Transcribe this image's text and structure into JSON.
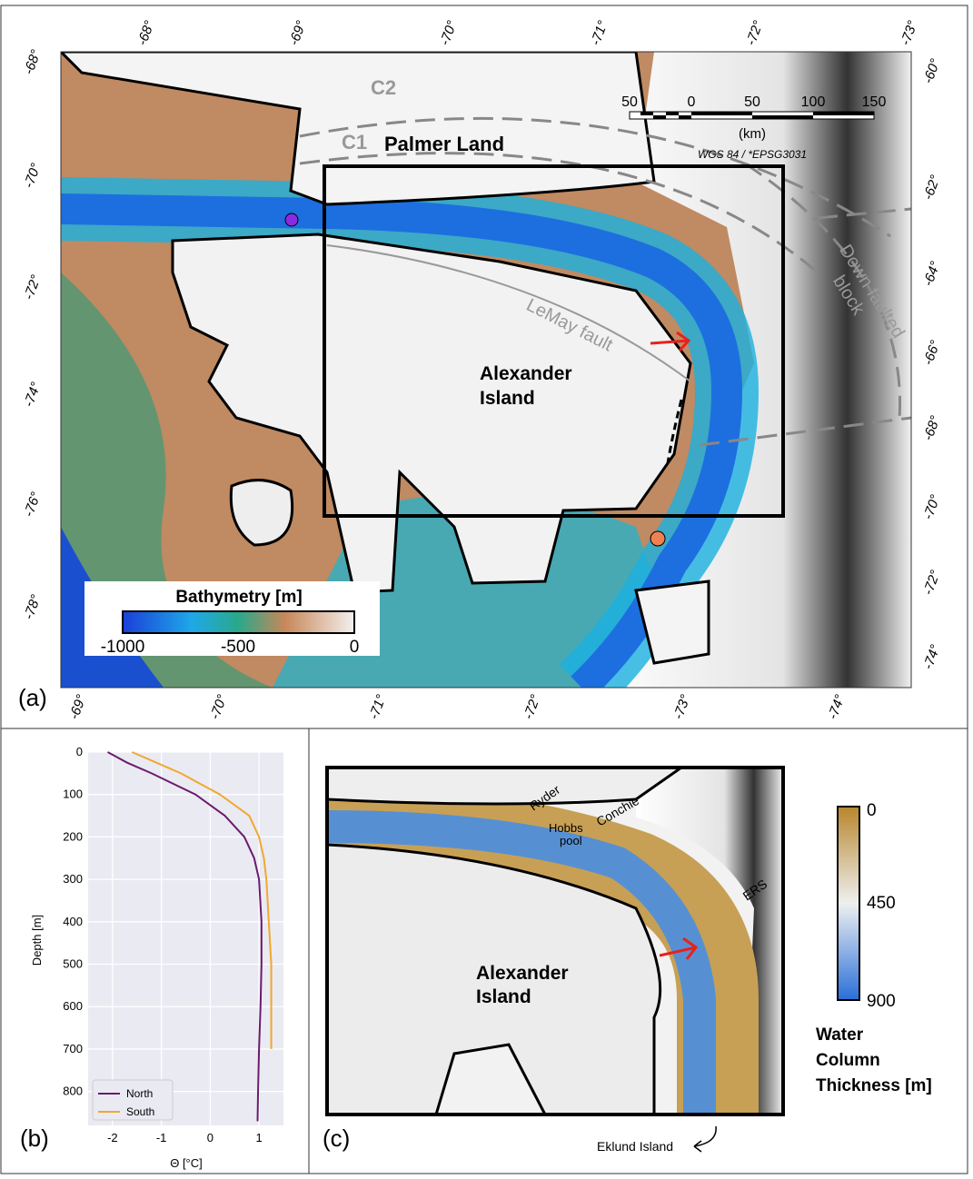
{
  "panel_a": {
    "label": "(a)",
    "lon_top": [
      "-68°",
      "-69°",
      "-70°",
      "-71°",
      "-72°",
      "-73°"
    ],
    "lon_bottom": [
      "-69°",
      "-70°",
      "-71°",
      "-72°",
      "-73°",
      "-74°"
    ],
    "lat_left": [
      "-68°",
      "-70°",
      "-72°",
      "-74°",
      "-76°",
      "-78°"
    ],
    "lat_right": [
      "-60°",
      "-62°",
      "-64°",
      "-66°",
      "-68°",
      "-70°",
      "-72°",
      "-74°"
    ],
    "features": {
      "c2": "C2",
      "c1": "C1",
      "palmer": "Palmer  Land",
      "lemay": "LeMay fault",
      "down_faulted": [
        "Down faulted",
        "block"
      ],
      "alexander": [
        "Alexander",
        "Island"
      ]
    },
    "scale": {
      "ticks": [
        "50",
        "0",
        "50",
        "100",
        "150"
      ],
      "unit": "(km)",
      "projection": "WGS 84 / *EPSG3031"
    },
    "colorbar": {
      "title": "Bathymetry [m]",
      "ticks": [
        "-1000",
        "-500",
        "0"
      ]
    }
  },
  "chart_data": {
    "type": "line",
    "panel_label": "(b)",
    "y_label": "Depth [m]",
    "x_label": "Θ [°C]",
    "depth": [
      0,
      25,
      50,
      100,
      150,
      200,
      250,
      300,
      400,
      500,
      600,
      700,
      800,
      870
    ],
    "series": [
      {
        "name": "North",
        "color": "#6a1b6e",
        "values": [
          -2.1,
          -1.7,
          -1.2,
          -0.3,
          0.3,
          0.7,
          0.9,
          1.0,
          1.05,
          1.05,
          1.03,
          1.0,
          0.98,
          0.97
        ]
      },
      {
        "name": "South",
        "color": "#f0a830",
        "values": [
          -1.6,
          -1.1,
          -0.6,
          0.2,
          0.8,
          1.0,
          1.1,
          1.15,
          1.2,
          1.25,
          1.25,
          1.25,
          null,
          null
        ]
      }
    ],
    "xlim": [
      -2.5,
      1.5
    ],
    "xticks": [
      -2,
      -1,
      0,
      1
    ],
    "ylim": [
      0,
      880
    ],
    "yticks": [
      0,
      100,
      200,
      300,
      400,
      500,
      600,
      700,
      800
    ],
    "grid": true,
    "legend": "lower left"
  },
  "panel_c": {
    "label": "(c)",
    "places": {
      "ryder": "Ryder",
      "hobbs": [
        "Hobbs",
        "pool"
      ],
      "conchie": "Conchie",
      "ers": "ERS",
      "alexander": [
        "Alexander",
        "Island"
      ],
      "eklund": "Eklund Island"
    },
    "colorbar": {
      "ticks": [
        "0",
        "450",
        "900"
      ],
      "title": [
        "Water",
        "Column",
        "Thickness [m]"
      ]
    }
  }
}
